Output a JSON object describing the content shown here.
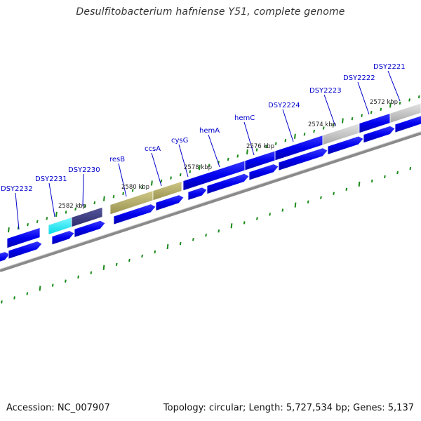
{
  "title": "Desulfitobacterium hafniense Y51, complete genome",
  "footer": {
    "accession": "Accession: NC_007907",
    "topology": "Topology: circular; Length: 5,727,534 bp; Genes: 5,137"
  },
  "colors": {
    "cds_blue": "#0000ee",
    "highlight_cyan": "#00e6f0",
    "navy": "#3a3a80",
    "olive": "#b0a85e",
    "grey": "#b8b8b8",
    "backbone": "#8a8a8a",
    "tick_green": "#1a8a1a",
    "label_blue": "#0000cc"
  },
  "gene_labels": [
    "DSY2232",
    "DSY2231",
    "DSY2230",
    "resB",
    "ccsA",
    "cysG",
    "hemA",
    "hemC",
    "DSY2224",
    "DSY2223",
    "DSY2222",
    "DSY2221"
  ],
  "kbp_labels": [
    "2582 kbp",
    "2580 kbp",
    "2578 kbp",
    "2576 kbp",
    "2574 kbp",
    "2572 kbp"
  ]
}
